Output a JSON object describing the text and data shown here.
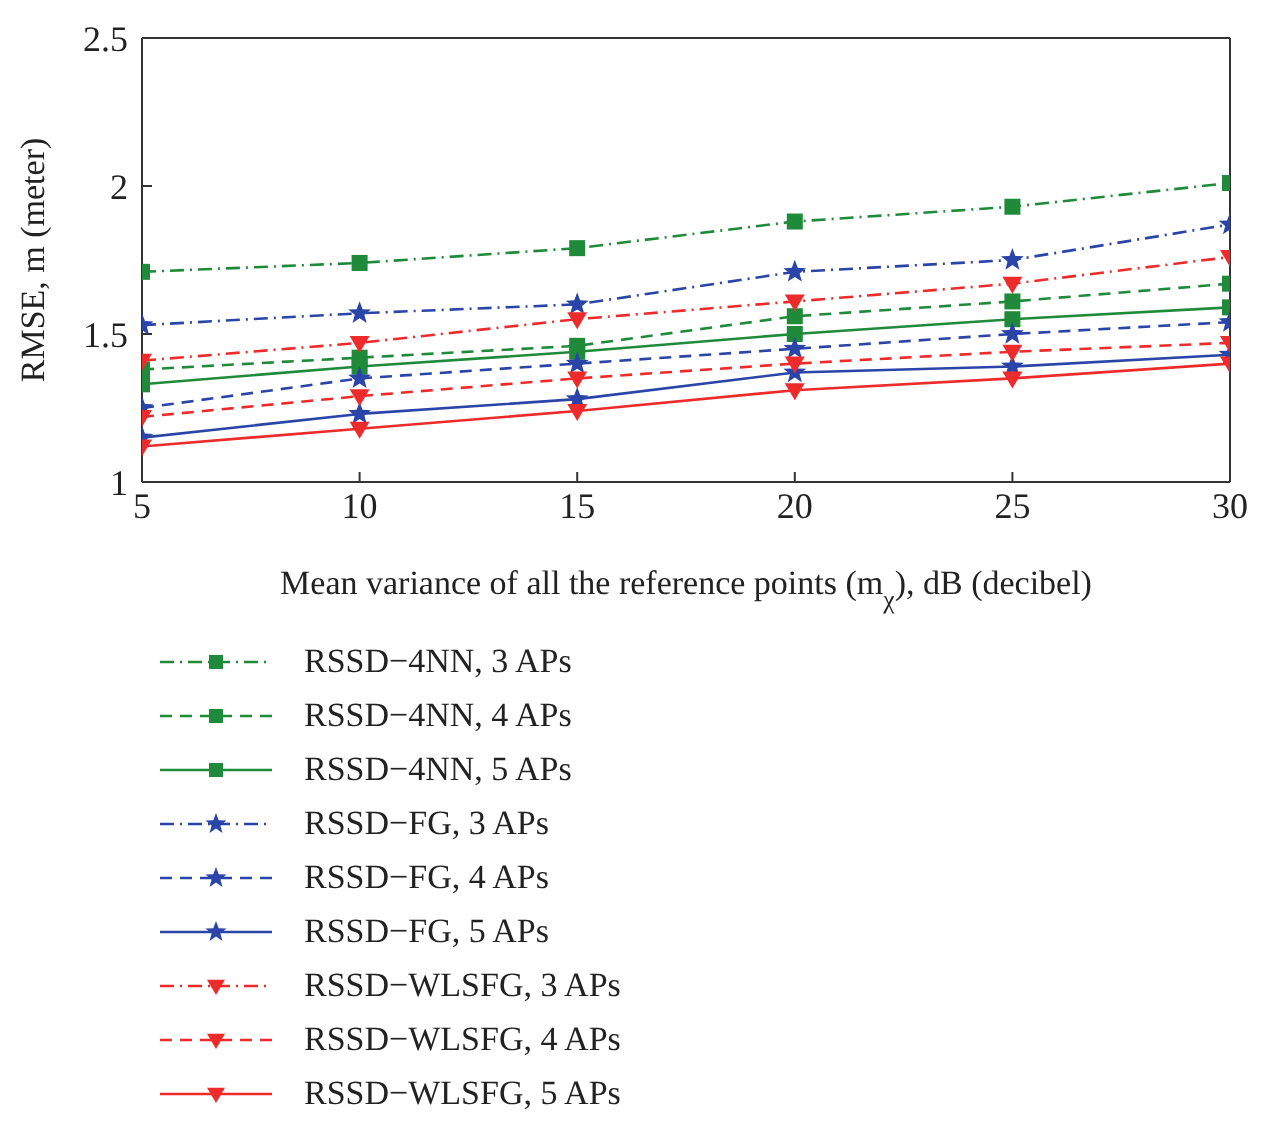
{
  "chart_data": {
    "type": "line",
    "xlabel": "Mean variance of all the reference points (m$_{χ}$), dB (decibel)",
    "ylabel": "RMSE, m (meter)",
    "x": [
      5,
      10,
      15,
      20,
      25,
      30
    ],
    "xlim": [
      5,
      30
    ],
    "xticks": [
      5,
      10,
      15,
      20,
      25,
      30
    ],
    "ylim": [
      1,
      2.5
    ],
    "yticks": [
      1,
      1.5,
      2,
      2.5
    ],
    "legend": "bottom",
    "series": [
      {
        "name": "RSSD−4NN, 3 APs",
        "color": "#1f8a3a",
        "marker": "square",
        "line_style": "dashdot",
        "values": [
          1.71,
          1.74,
          1.79,
          1.88,
          1.93,
          2.01
        ]
      },
      {
        "name": "RSSD−4NN, 4 APs",
        "color": "#1f8a3a",
        "marker": "square",
        "line_style": "dashed",
        "values": [
          1.38,
          1.42,
          1.46,
          1.56,
          1.61,
          1.67
        ]
      },
      {
        "name": "RSSD−4NN, 5 APs",
        "color": "#1f8a3a",
        "marker": "square",
        "line_style": "solid",
        "values": [
          1.33,
          1.39,
          1.44,
          1.5,
          1.55,
          1.59
        ]
      },
      {
        "name": "RSSD−FG, 3 APs",
        "color": "#2a44a8",
        "marker": "star",
        "line_style": "dashdot",
        "values": [
          1.53,
          1.57,
          1.6,
          1.71,
          1.75,
          1.87
        ]
      },
      {
        "name": "RSSD−FG, 4 APs",
        "color": "#2a44a8",
        "marker": "star",
        "line_style": "dashed",
        "values": [
          1.25,
          1.35,
          1.4,
          1.45,
          1.5,
          1.54
        ]
      },
      {
        "name": "RSSD−FG, 5 APs",
        "color": "#2a44a8",
        "marker": "star",
        "line_style": "solid",
        "values": [
          1.15,
          1.23,
          1.28,
          1.37,
          1.39,
          1.43
        ]
      },
      {
        "name": "RSSD−WLSFG, 3 APs",
        "color": "#ee2b2b",
        "marker": "triangle",
        "line_style": "dashdot",
        "values": [
          1.41,
          1.47,
          1.55,
          1.61,
          1.67,
          1.76
        ]
      },
      {
        "name": "RSSD−WLSFG, 4 APs",
        "color": "#ee2b2b",
        "marker": "triangle",
        "line_style": "dashed",
        "values": [
          1.22,
          1.29,
          1.35,
          1.4,
          1.44,
          1.47
        ]
      },
      {
        "name": "RSSD−WLSFG, 5 APs",
        "color": "#ee2b2b",
        "marker": "triangle",
        "line_style": "solid",
        "values": [
          1.12,
          1.18,
          1.24,
          1.31,
          1.35,
          1.4
        ]
      }
    ]
  }
}
